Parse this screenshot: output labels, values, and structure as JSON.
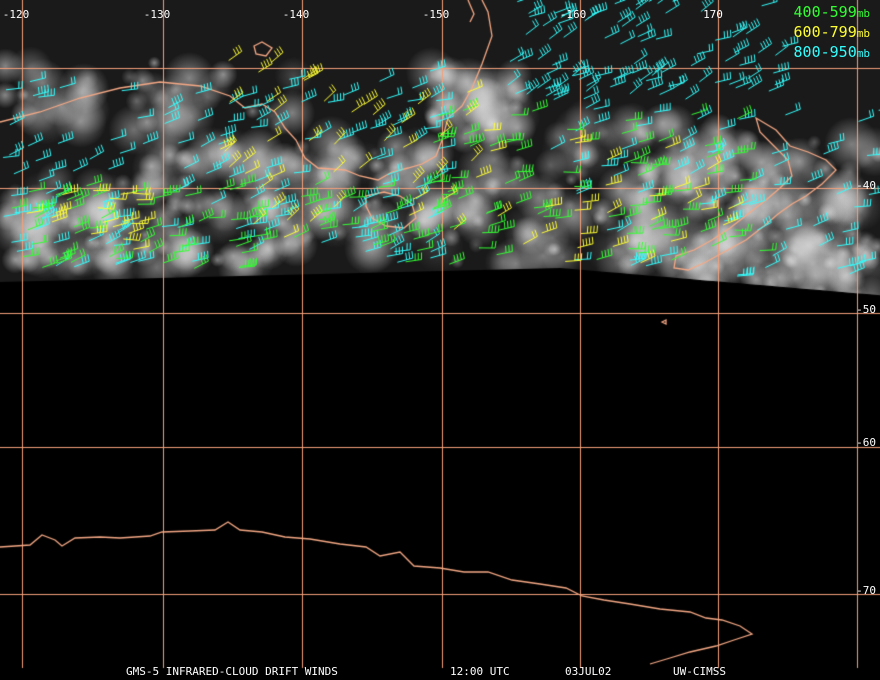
{
  "map": {
    "longitude_labels": [
      "-120",
      "-130",
      "-140",
      "-150",
      "-160",
      "170"
    ],
    "latitude_labels": [
      "-40",
      "-50",
      "-60",
      "-70"
    ],
    "colors": {
      "background": "#000000",
      "graticule": "#f4a07a",
      "coastline": "#f6a985",
      "label_text": "#ffffff",
      "cloud": "#d8d8d8"
    }
  },
  "legend": {
    "items": [
      {
        "range": "400-599",
        "unit": "mb",
        "color": "#33ff33"
      },
      {
        "range": "600-799",
        "unit": "mb",
        "color": "#ffff33"
      },
      {
        "range": "800-950",
        "unit": "mb",
        "color": "#33ffff"
      }
    ]
  },
  "caption": {
    "product": "GMS-5 INFRARED-CLOUD DRIFT WINDS",
    "time": "12:00 UTC",
    "date": "03JUL02",
    "source": "UW-CIMSS"
  }
}
